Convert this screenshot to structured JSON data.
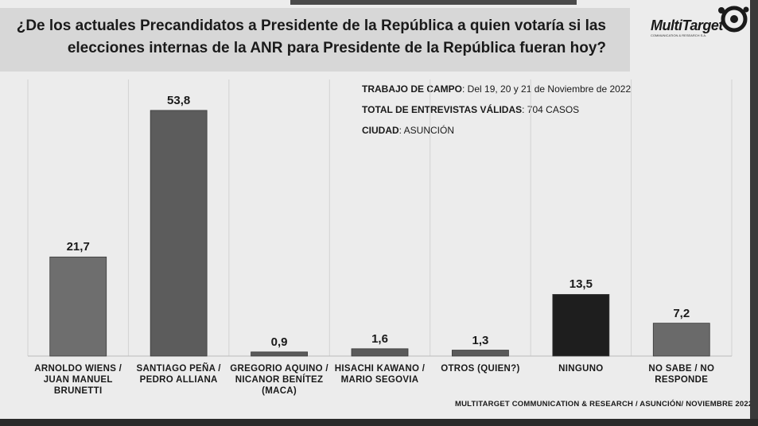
{
  "header": {
    "title_line1": "¿De los actuales Precandidatos a Presidente de la República a quien votaría si las",
    "title_line2": "elecciones internas de la ANR para Presidente de la República fueran hoy?"
  },
  "logo": {
    "name": "MultiTarget",
    "tagline": "COMMUNICATION & RESEARCH S.A."
  },
  "info": {
    "fieldwork_label": "TRABAJO DE CAMPO",
    "fieldwork_value": ": Del 19, 20 y 21  de Noviembre  de  2022",
    "interviews_label": "TOTAL DE ENTREVISTAS VÁLIDAS",
    "interviews_value": ": 704 CASOS",
    "city_label": "CIUDAD",
    "city_value": ": ASUNCIÓN"
  },
  "footer": "MULTITARGET COMMUNICATION & RESEARCH / ASUNCIÓN/ NOVIEMBRE  2022",
  "chart_data": {
    "type": "bar",
    "title": "¿De los actuales Precandidatos a Presidente de la República a quien votaría si las elecciones internas de la ANR para Presidente de la República fueran hoy?",
    "categories": [
      "ARNOLDO WIENS /\nJUAN MANUEL\nBRUNETTI",
      "SANTIAGO PEÑA /\nPEDRO ALLIANA",
      "GREGORIO AQUINO /\nNICANOR BENÍTEZ\n(MACA)",
      "HISACHI KAWANO /\nMARIO SEGOVIA",
      "OTROS (QUIEN?)",
      "NINGUNO",
      "NO SABE / NO\nRESPONDE"
    ],
    "values": [
      21.7,
      53.8,
      0.9,
      1.6,
      1.3,
      13.5,
      7.2
    ],
    "value_labels": [
      "21,7",
      "53,8",
      "0,9",
      "1,6",
      "1,3",
      "13,5",
      "7,2"
    ],
    "bar_colors": [
      "#6e6e6e",
      "#5c5c5c",
      "#5a5a5a",
      "#5a5a5a",
      "#5a5a5a",
      "#1e1e1e",
      "#6a6a6a"
    ],
    "ylim": [
      0,
      55
    ],
    "xlabel": "",
    "ylabel": "",
    "grid": false,
    "legend": "none"
  }
}
